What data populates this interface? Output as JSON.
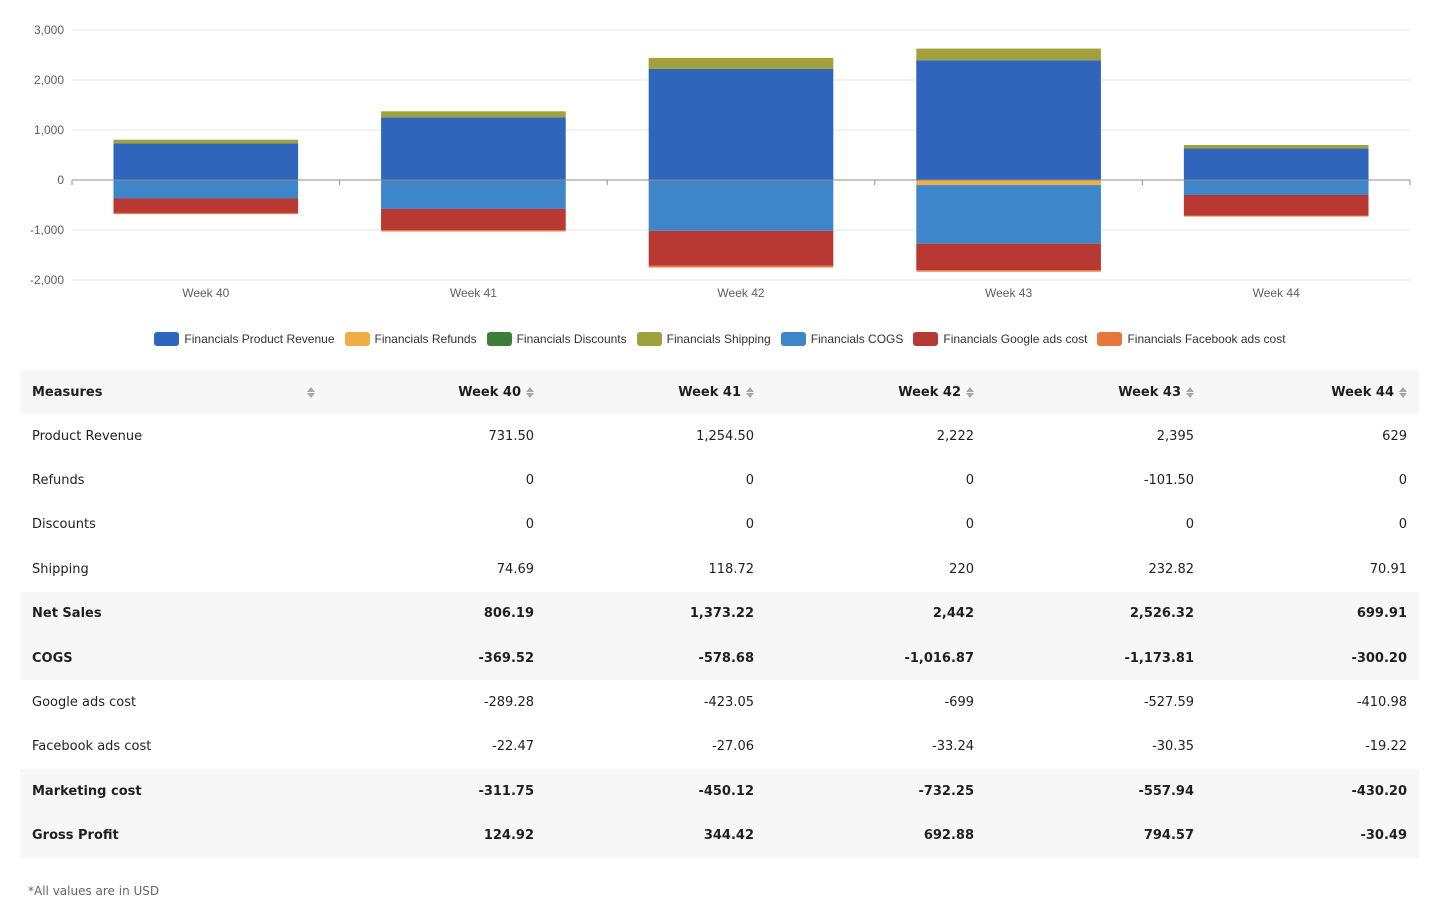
{
  "chart_data": {
    "type": "bar",
    "stacked": true,
    "categories": [
      "Week 40",
      "Week 41",
      "Week 42",
      "Week 43",
      "Week 44"
    ],
    "ylim": [
      -2000,
      3000
    ],
    "yticks": [
      3000,
      2000,
      1000,
      0,
      -1000,
      -2000
    ],
    "ytick_labels": [
      "3,000",
      "2,000",
      "1,000",
      "0",
      "-1,000",
      "-2,000"
    ],
    "grid": true,
    "legend_position": "bottom",
    "series": [
      {
        "name": "Financials Product Revenue",
        "color": "#2f65bb",
        "values": [
          731.5,
          1254.5,
          2222,
          2395,
          629
        ]
      },
      {
        "name": "Financials Refunds",
        "color": "#f0ac45",
        "values": [
          0,
          0,
          0,
          -101.5,
          0
        ]
      },
      {
        "name": "Financials Discounts",
        "color": "#3d7d39",
        "values": [
          0,
          0,
          0,
          0,
          0
        ]
      },
      {
        "name": "Financials Shipping",
        "color": "#a0a03c",
        "values": [
          74.69,
          118.72,
          220,
          232.82,
          70.91
        ]
      },
      {
        "name": "Financials COGS",
        "color": "#3c86c9",
        "values": [
          -369.52,
          -578.68,
          -1016.87,
          -1173.81,
          -300.2
        ]
      },
      {
        "name": "Financials Google ads cost",
        "color": "#b83833",
        "values": [
          -289.28,
          -423.05,
          -699,
          -527.59,
          -410.98
        ]
      },
      {
        "name": "Financials Facebook ads cost",
        "color": "#e8763a",
        "values": [
          -22.47,
          -27.06,
          -33.24,
          -30.35,
          -19.22
        ]
      }
    ]
  },
  "table": {
    "header_label": "Measures",
    "columns": [
      "Week 40",
      "Week 41",
      "Week 42",
      "Week 43",
      "Week 44"
    ],
    "rows": [
      {
        "label": "Product Revenue",
        "bold": false,
        "values": [
          "731.50",
          "1,254.50",
          "2,222",
          "2,395",
          "629"
        ]
      },
      {
        "label": "Refunds",
        "bold": false,
        "values": [
          "0",
          "0",
          "0",
          "-101.50",
          "0"
        ]
      },
      {
        "label": "Discounts",
        "bold": false,
        "values": [
          "0",
          "0",
          "0",
          "0",
          "0"
        ]
      },
      {
        "label": "Shipping",
        "bold": false,
        "values": [
          "74.69",
          "118.72",
          "220",
          "232.82",
          "70.91"
        ]
      },
      {
        "label": "Net Sales",
        "bold": true,
        "values": [
          "806.19",
          "1,373.22",
          "2,442",
          "2,526.32",
          "699.91"
        ]
      },
      {
        "label": "COGS",
        "bold": true,
        "values": [
          "-369.52",
          "-578.68",
          "-1,016.87",
          "-1,173.81",
          "-300.20"
        ]
      },
      {
        "label": "Google ads cost",
        "bold": false,
        "values": [
          "-289.28",
          "-423.05",
          "-699",
          "-527.59",
          "-410.98"
        ]
      },
      {
        "label": "Facebook ads cost",
        "bold": false,
        "values": [
          "-22.47",
          "-27.06",
          "-33.24",
          "-30.35",
          "-19.22"
        ]
      },
      {
        "label": "Marketing cost",
        "bold": true,
        "values": [
          "-311.75",
          "-450.12",
          "-732.25",
          "-557.94",
          "-430.20"
        ]
      },
      {
        "label": "Gross Profit",
        "bold": true,
        "values": [
          "124.92",
          "344.42",
          "692.88",
          "794.57",
          "-30.49"
        ]
      }
    ]
  },
  "footnote": "*All values are in USD"
}
